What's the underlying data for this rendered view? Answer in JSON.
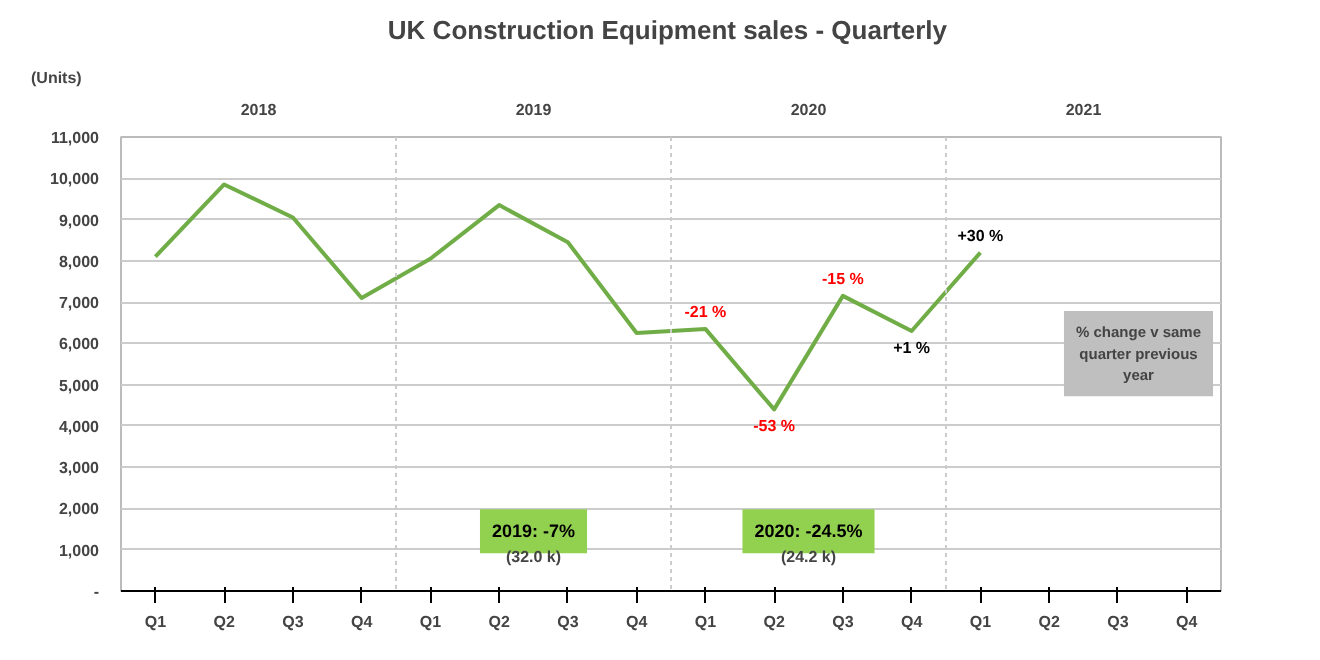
{
  "chart_data": {
    "type": "line",
    "title": "UK Construction  Equipment sales - Quarterly",
    "ylabel": "(Units)",
    "categories": [
      "Q1",
      "Q2",
      "Q3",
      "Q4",
      "Q1",
      "Q2",
      "Q3",
      "Q4",
      "Q1",
      "Q2",
      "Q3",
      "Q4",
      "Q1",
      "Q2",
      "Q3",
      "Q4"
    ],
    "series": [
      {
        "color": "#70ad47",
        "values": [
          8100,
          9850,
          9050,
          7100,
          8050,
          9350,
          8450,
          6250,
          6350,
          4400,
          7150,
          6300,
          8200,
          null,
          null,
          null
        ]
      }
    ],
    "ylim": [
      0,
      11000
    ],
    "yticks": [
      {
        "value": 0,
        "label": "-"
      },
      {
        "value": 1000,
        "label": "1,000"
      },
      {
        "value": 2000,
        "label": "2,000"
      },
      {
        "value": 3000,
        "label": "3,000"
      },
      {
        "value": 4000,
        "label": "4,000"
      },
      {
        "value": 5000,
        "label": "5,000"
      },
      {
        "value": 6000,
        "label": "6,000"
      },
      {
        "value": 7000,
        "label": "7,000"
      },
      {
        "value": 8000,
        "label": "8,000"
      },
      {
        "value": 9000,
        "label": "9,000"
      },
      {
        "value": 10000,
        "label": "10,000"
      },
      {
        "value": 11000,
        "label": "11,000"
      }
    ],
    "grid": "y",
    "annotations": [
      "2018",
      "2019",
      "2020",
      "2021",
      "2019: -7%",
      "(32.0 k)",
      "2020: -24.5%",
      "(24.2 k)",
      "% change v same quarter previous year",
      {
        "text": "-21 %",
        "y": 6350
      },
      {
        "text": "-53 %",
        "y": 4400
      },
      {
        "text": "-15 %",
        "y": 7150
      },
      {
        "text": "+1 %",
        "y": 6300
      },
      {
        "text": "+30 %",
        "y": 8200
      }
    ]
  }
}
